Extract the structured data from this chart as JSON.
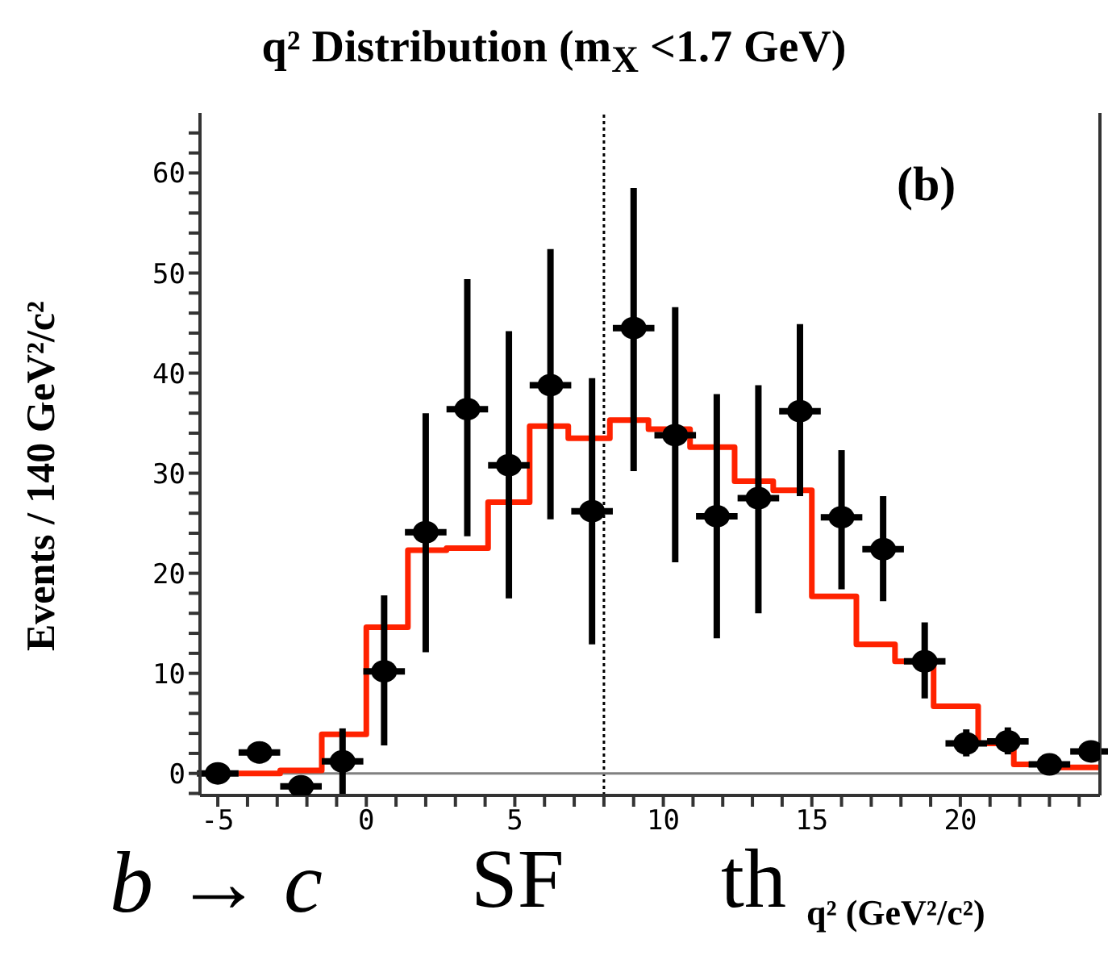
{
  "chart_data": {
    "type": "scatter",
    "title": "q² Distribution (m$_{X}$ <1.7 GeV)",
    "ylabel": "Events / 140 GeV²/c²",
    "xlabel": "q² (GeV²/c²)",
    "annotations": [
      "b → c",
      "SF",
      "th",
      "(b)"
    ],
    "xlim": [
      -5.6,
      24.7
    ],
    "ylim": [
      -2.2,
      66
    ],
    "xticks": [
      {
        "value": -5,
        "label": "-5"
      },
      {
        "value": -4,
        "label": null
      },
      {
        "value": -3,
        "label": null
      },
      {
        "value": -2,
        "label": null
      },
      {
        "value": -1,
        "label": null
      },
      0,
      {
        "value": 1,
        "label": null
      },
      {
        "value": 2,
        "label": null
      },
      {
        "value": 3,
        "label": null
      },
      {
        "value": 4,
        "label": null
      },
      5,
      {
        "value": 6,
        "label": null
      },
      {
        "value": 7,
        "label": null
      },
      {
        "value": 8,
        "label": null
      },
      {
        "value": 9,
        "label": null
      },
      10,
      {
        "value": 11,
        "label": null
      },
      {
        "value": 12,
        "label": null
      },
      {
        "value": 13,
        "label": null
      },
      {
        "value": 14,
        "label": null
      },
      15,
      {
        "value": 16,
        "label": null
      },
      {
        "value": 17,
        "label": null
      },
      {
        "value": 18,
        "label": null
      },
      {
        "value": 19,
        "label": null
      },
      20,
      {
        "value": 21,
        "label": null
      },
      {
        "value": 22,
        "label": null
      },
      {
        "value": 23,
        "label": null
      },
      {
        "value": 24,
        "label": null
      }
    ],
    "yticks": [
      {
        "value": -2,
        "label": null
      },
      0,
      {
        "value": 2,
        "label": null
      },
      {
        "value": 4,
        "label": null
      },
      {
        "value": 6,
        "label": null
      },
      {
        "value": 8,
        "label": null
      },
      10,
      {
        "value": 12,
        "label": null
      },
      {
        "value": 14,
        "label": null
      },
      {
        "value": 16,
        "label": null
      },
      {
        "value": 18,
        "label": null
      },
      20,
      {
        "value": 22,
        "label": null
      },
      {
        "value": 24,
        "label": null
      },
      {
        "value": 26,
        "label": null
      },
      {
        "value": 28,
        "label": null
      },
      30,
      {
        "value": 32,
        "label": null
      },
      {
        "value": 34,
        "label": null
      },
      {
        "value": 36,
        "label": null
      },
      {
        "value": 38,
        "label": null
      },
      40,
      {
        "value": 42,
        "label": null
      },
      {
        "value": 44,
        "label": null
      },
      {
        "value": 46,
        "label": null
      },
      {
        "value": 48,
        "label": null
      },
      50,
      {
        "value": 52,
        "label": null
      },
      {
        "value": 54,
        "label": null
      },
      {
        "value": 56,
        "label": null
      },
      {
        "value": 58,
        "label": null
      },
      60,
      {
        "value": 62,
        "label": null
      },
      {
        "value": 64,
        "label": null
      }
    ],
    "grid": false,
    "legend": false,
    "ref_lines": [
      {
        "axis": "x",
        "value": 8,
        "color": "#000000",
        "line_style": "dotted"
      },
      {
        "axis": "y",
        "value": 0,
        "color": "#808080",
        "line_style": "solid"
      }
    ],
    "series": [
      {
        "type": "step",
        "color": "#ff2200",
        "x": [
          -4.3,
          -2.9,
          -1.5,
          0,
          1.4,
          2.7,
          4.1,
          5.5,
          6.8,
          8.2,
          9.5,
          10.9,
          12.4,
          13.7,
          15.0,
          16.5,
          17.8,
          19.1,
          20.6,
          21.8,
          23.2,
          24.7
        ],
        "values": [
          0.0,
          0.3,
          3.9,
          14.6,
          22.3,
          22.5,
          27.1,
          34.7,
          33.5,
          35.3,
          34.4,
          32.6,
          29.2,
          28.3,
          17.7,
          12.9,
          11.2,
          6.7,
          3.0,
          0.9,
          0.6,
          0.6
        ]
      },
      {
        "color": "#000000",
        "marker": "circle",
        "x": [
          -5,
          -3.6,
          -2.2,
          -0.8,
          0.6,
          2.0,
          3.4,
          4.8,
          6.2,
          7.6,
          9.0,
          10.4,
          11.8,
          13.2,
          14.6,
          16.0,
          17.4,
          18.8,
          20.2,
          21.6,
          23.0,
          24.4
        ],
        "values": [
          0,
          2.1,
          -1.3,
          1.2,
          10.2,
          24.1,
          36.4,
          30.8,
          38.8,
          26.2,
          44.5,
          33.8,
          25.7,
          27.5,
          36.2,
          25.6,
          22.4,
          11.2,
          3.0,
          3.2,
          0.9,
          2.2
        ],
        "errors": [
          null,
          [
            1.0,
            3.2
          ],
          null,
          [
            -2.2,
            4.5
          ],
          [
            2.8,
            17.8
          ],
          [
            12.1,
            36.0
          ],
          [
            23.7,
            49.4
          ],
          [
            17.5,
            44.2
          ],
          [
            25.4,
            52.4
          ],
          [
            12.9,
            39.5
          ],
          [
            30.2,
            58.5
          ],
          [
            21.1,
            46.6
          ],
          [
            13.5,
            37.9
          ],
          [
            16.0,
            38.8
          ],
          [
            27.7,
            44.9
          ],
          [
            18.4,
            32.3
          ],
          [
            17.2,
            27.7
          ],
          [
            7.5,
            15.1
          ],
          [
            1.7,
            4.4
          ],
          [
            1.9,
            4.6
          ],
          null,
          [
            1.2,
            3.2
          ]
        ],
        "xerrors": [
          0.7,
          0.7,
          0.7,
          0.7,
          0.7,
          0.7,
          0.7,
          0.7,
          0.7,
          0.7,
          0.7,
          0.7,
          0.7,
          0.7,
          0.7,
          0.7,
          0.7,
          0.7,
          0.7,
          0.7,
          0.7,
          0.7
        ]
      }
    ]
  }
}
